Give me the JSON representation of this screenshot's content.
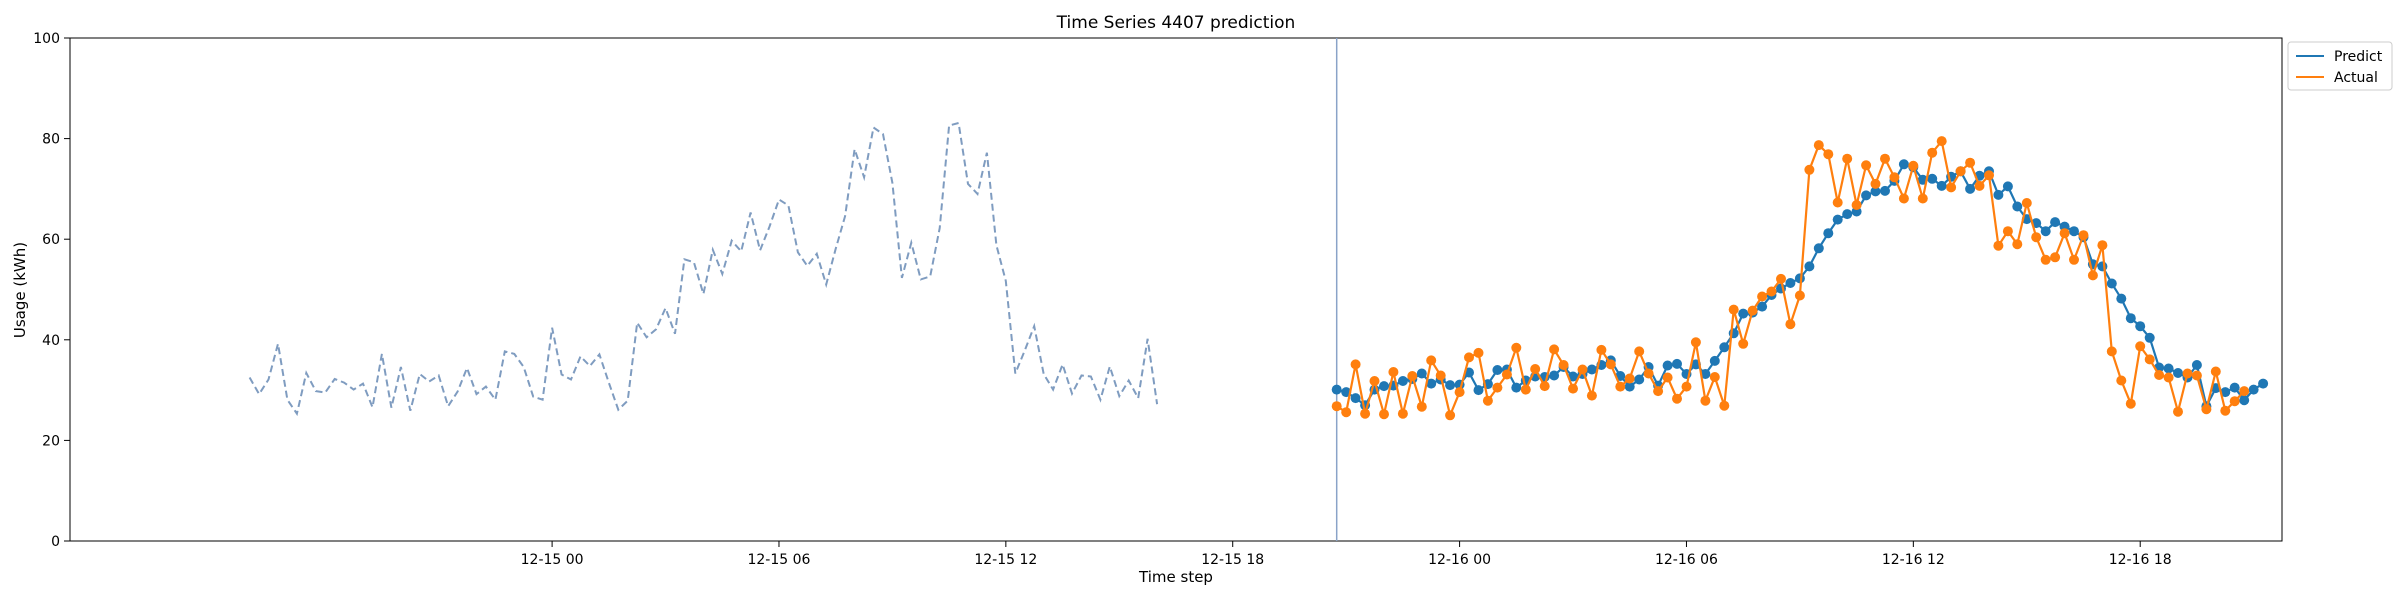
{
  "chart_data": {
    "type": "line",
    "title": "Time Series 4407 prediction",
    "xlabel": "Time step",
    "ylabel": "Usage (kWh)",
    "ylim": [
      0,
      100
    ],
    "yticks": [
      0,
      20,
      40,
      60,
      80,
      100
    ],
    "x_unit": "hour",
    "x_start": "2023-12-14 16:00",
    "xlim_hours": [
      -4.75,
      53.75
    ],
    "xticks": [
      {
        "hours": 8,
        "label": "12-15 00"
      },
      {
        "hours": 14,
        "label": "12-15 06"
      },
      {
        "hours": 20,
        "label": "12-15 12"
      },
      {
        "hours": 26,
        "label": "12-15 18"
      },
      {
        "hours": 32,
        "label": "12-16 00"
      },
      {
        "hours": 38,
        "label": "12-16 06"
      },
      {
        "hours": 44,
        "label": "12-16 12"
      },
      {
        "hours": 50,
        "label": "12-16 18"
      }
    ],
    "split_at_hours": 28.75,
    "legend_position": "upper-right-outside",
    "colors": {
      "history": "#7f9cc0",
      "predict": "#1f77b4",
      "actual": "#ff7f0e",
      "split": "#8aa3c8"
    },
    "history": {
      "name": "",
      "step_hours": 0.25,
      "start_hours": 0,
      "values": [
        32.5,
        29.2,
        32.1,
        39.2,
        28.1,
        25.3,
        33.4,
        29.8,
        29.5,
        32.2,
        31.5,
        30.1,
        31.3,
        26.6,
        37.2,
        26.5,
        34.6,
        25.9,
        33.2,
        31.7,
        32.9,
        26.8,
        29.7,
        34.4,
        29.2,
        30.7,
        28.1,
        37.7,
        37.2,
        34.6,
        28.7,
        28.1,
        42.4,
        33.1,
        32.1,
        36.7,
        34.8,
        37.1,
        31.5,
        26.1,
        27.9,
        43.4,
        40.5,
        42.1,
        46.3,
        41.2,
        56.0,
        55.4,
        49.1,
        57.9,
        53.1,
        59.7,
        57.6,
        65.3,
        57.8,
        62.5,
        67.9,
        66.7,
        57.4,
        54.7,
        57.1,
        51.0,
        58.1,
        64.6,
        77.9,
        72.3,
        82.2,
        80.9,
        71.2,
        52.3,
        59.3,
        52.0,
        52.6,
        62.2,
        82.6,
        83.1,
        71.0,
        69.0,
        77.2,
        58.8,
        51.7,
        33.3,
        37.9,
        42.7,
        33.2,
        30.1,
        35.1,
        29.3,
        32.9,
        32.7,
        28.1,
        34.7,
        28.8,
        31.9,
        28.4,
        40.2,
        27.2
      ]
    },
    "series": [
      {
        "name": "Predict",
        "step_hours": 0.25,
        "start_hours": 28.75,
        "values": [
          30.1,
          29.6,
          28.4,
          27.0,
          30.1,
          30.8,
          30.9,
          31.8,
          32.2,
          33.3,
          31.3,
          32.1,
          31.0,
          31.1,
          33.5,
          30.0,
          31.2,
          34.0,
          34.1,
          30.5,
          31.9,
          32.7,
          32.6,
          32.9,
          34.6,
          32.7,
          33.2,
          34.1,
          35.0,
          35.9,
          32.8,
          30.7,
          32.1,
          34.6,
          30.9,
          34.9,
          35.2,
          33.2,
          35.1,
          33.2,
          35.8,
          38.5,
          41.3,
          45.2,
          45.4,
          46.6,
          48.9,
          50.2,
          51.3,
          52.2,
          54.6,
          58.2,
          61.2,
          63.9,
          65.0,
          65.5,
          68.7,
          69.5,
          69.6,
          71.6,
          74.9,
          74.3,
          71.8,
          72.0,
          70.6,
          72.4,
          73.5,
          70.0,
          72.6,
          73.5,
          68.8,
          70.5,
          66.5,
          64.0,
          63.2,
          61.6,
          63.4,
          62.5,
          61.6,
          60.4,
          55.0,
          54.6,
          51.2,
          48.2,
          44.3,
          42.7,
          40.4,
          34.5,
          34.3,
          33.4,
          32.5,
          35.0,
          26.8,
          30.4,
          29.6,
          30.5,
          28.0,
          30.1,
          31.3
        ]
      },
      {
        "name": "Actual",
        "step_hours": 0.25,
        "start_hours": 28.75,
        "values": [
          26.8,
          25.6,
          35.1,
          25.3,
          31.8,
          25.2,
          33.6,
          25.3,
          32.8,
          26.7,
          35.9,
          32.9,
          25.0,
          29.6,
          36.5,
          37.4,
          27.9,
          30.5,
          33.1,
          38.4,
          30.1,
          34.2,
          30.8,
          38.1,
          35.0,
          30.3,
          34.1,
          28.9,
          38.0,
          35.1,
          30.7,
          32.3,
          37.7,
          33.3,
          29.8,
          32.5,
          28.3,
          30.7,
          39.5,
          27.9,
          32.6,
          26.9,
          46.0,
          39.2,
          45.8,
          48.6,
          49.6,
          52.1,
          43.1,
          48.8,
          73.8,
          78.7,
          76.9,
          67.3,
          76.0,
          66.8,
          74.7,
          71.0,
          76.0,
          72.3,
          68.1,
          74.6,
          68.1,
          77.2,
          79.5,
          70.3,
          73.5,
          75.2,
          70.6,
          72.7,
          58.7,
          61.6,
          59.0,
          67.2,
          60.4,
          55.9,
          56.4,
          61.2,
          55.9,
          60.8,
          52.8,
          58.8,
          37.7,
          31.9,
          27.3,
          38.7,
          36.1,
          33.0,
          32.5,
          25.7,
          33.3,
          32.9,
          26.2,
          33.7,
          25.9,
          27.8,
          29.8
        ]
      }
    ]
  }
}
